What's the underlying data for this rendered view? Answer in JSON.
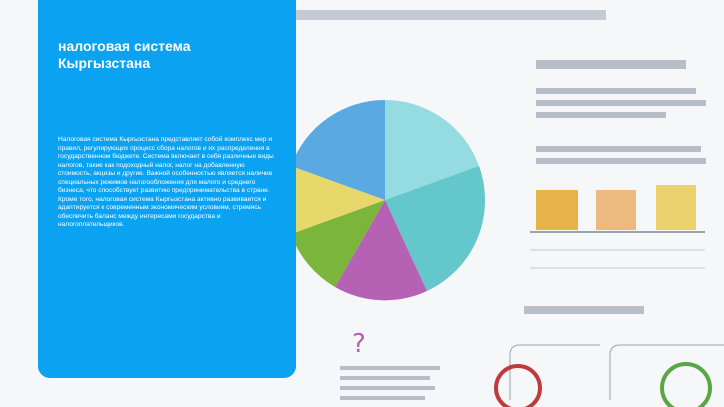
{
  "card": {
    "title": "налоговая система Кыргызстана",
    "body": "Налоговая система Кыргызстана представляет собой комплекс мер и правил, регулирующих процесс сбора налогов и их распределения в государственном бюджете. Система включает в себя различные виды налогов, такие как подоходный налог, налог на добавленную стоимость, акцизы и другие. Важной особенностью является наличие специальных режимов налогообложения для малого и среднего бизнеса, что способствует развитию предпринимательства в стране. Кроме того, налоговая система Кыргызстана активно развивается и адаптируется к современным экономическим условиям, стремясь обеспечить баланс между интересами государства и налогоплательщиков."
  }
}
